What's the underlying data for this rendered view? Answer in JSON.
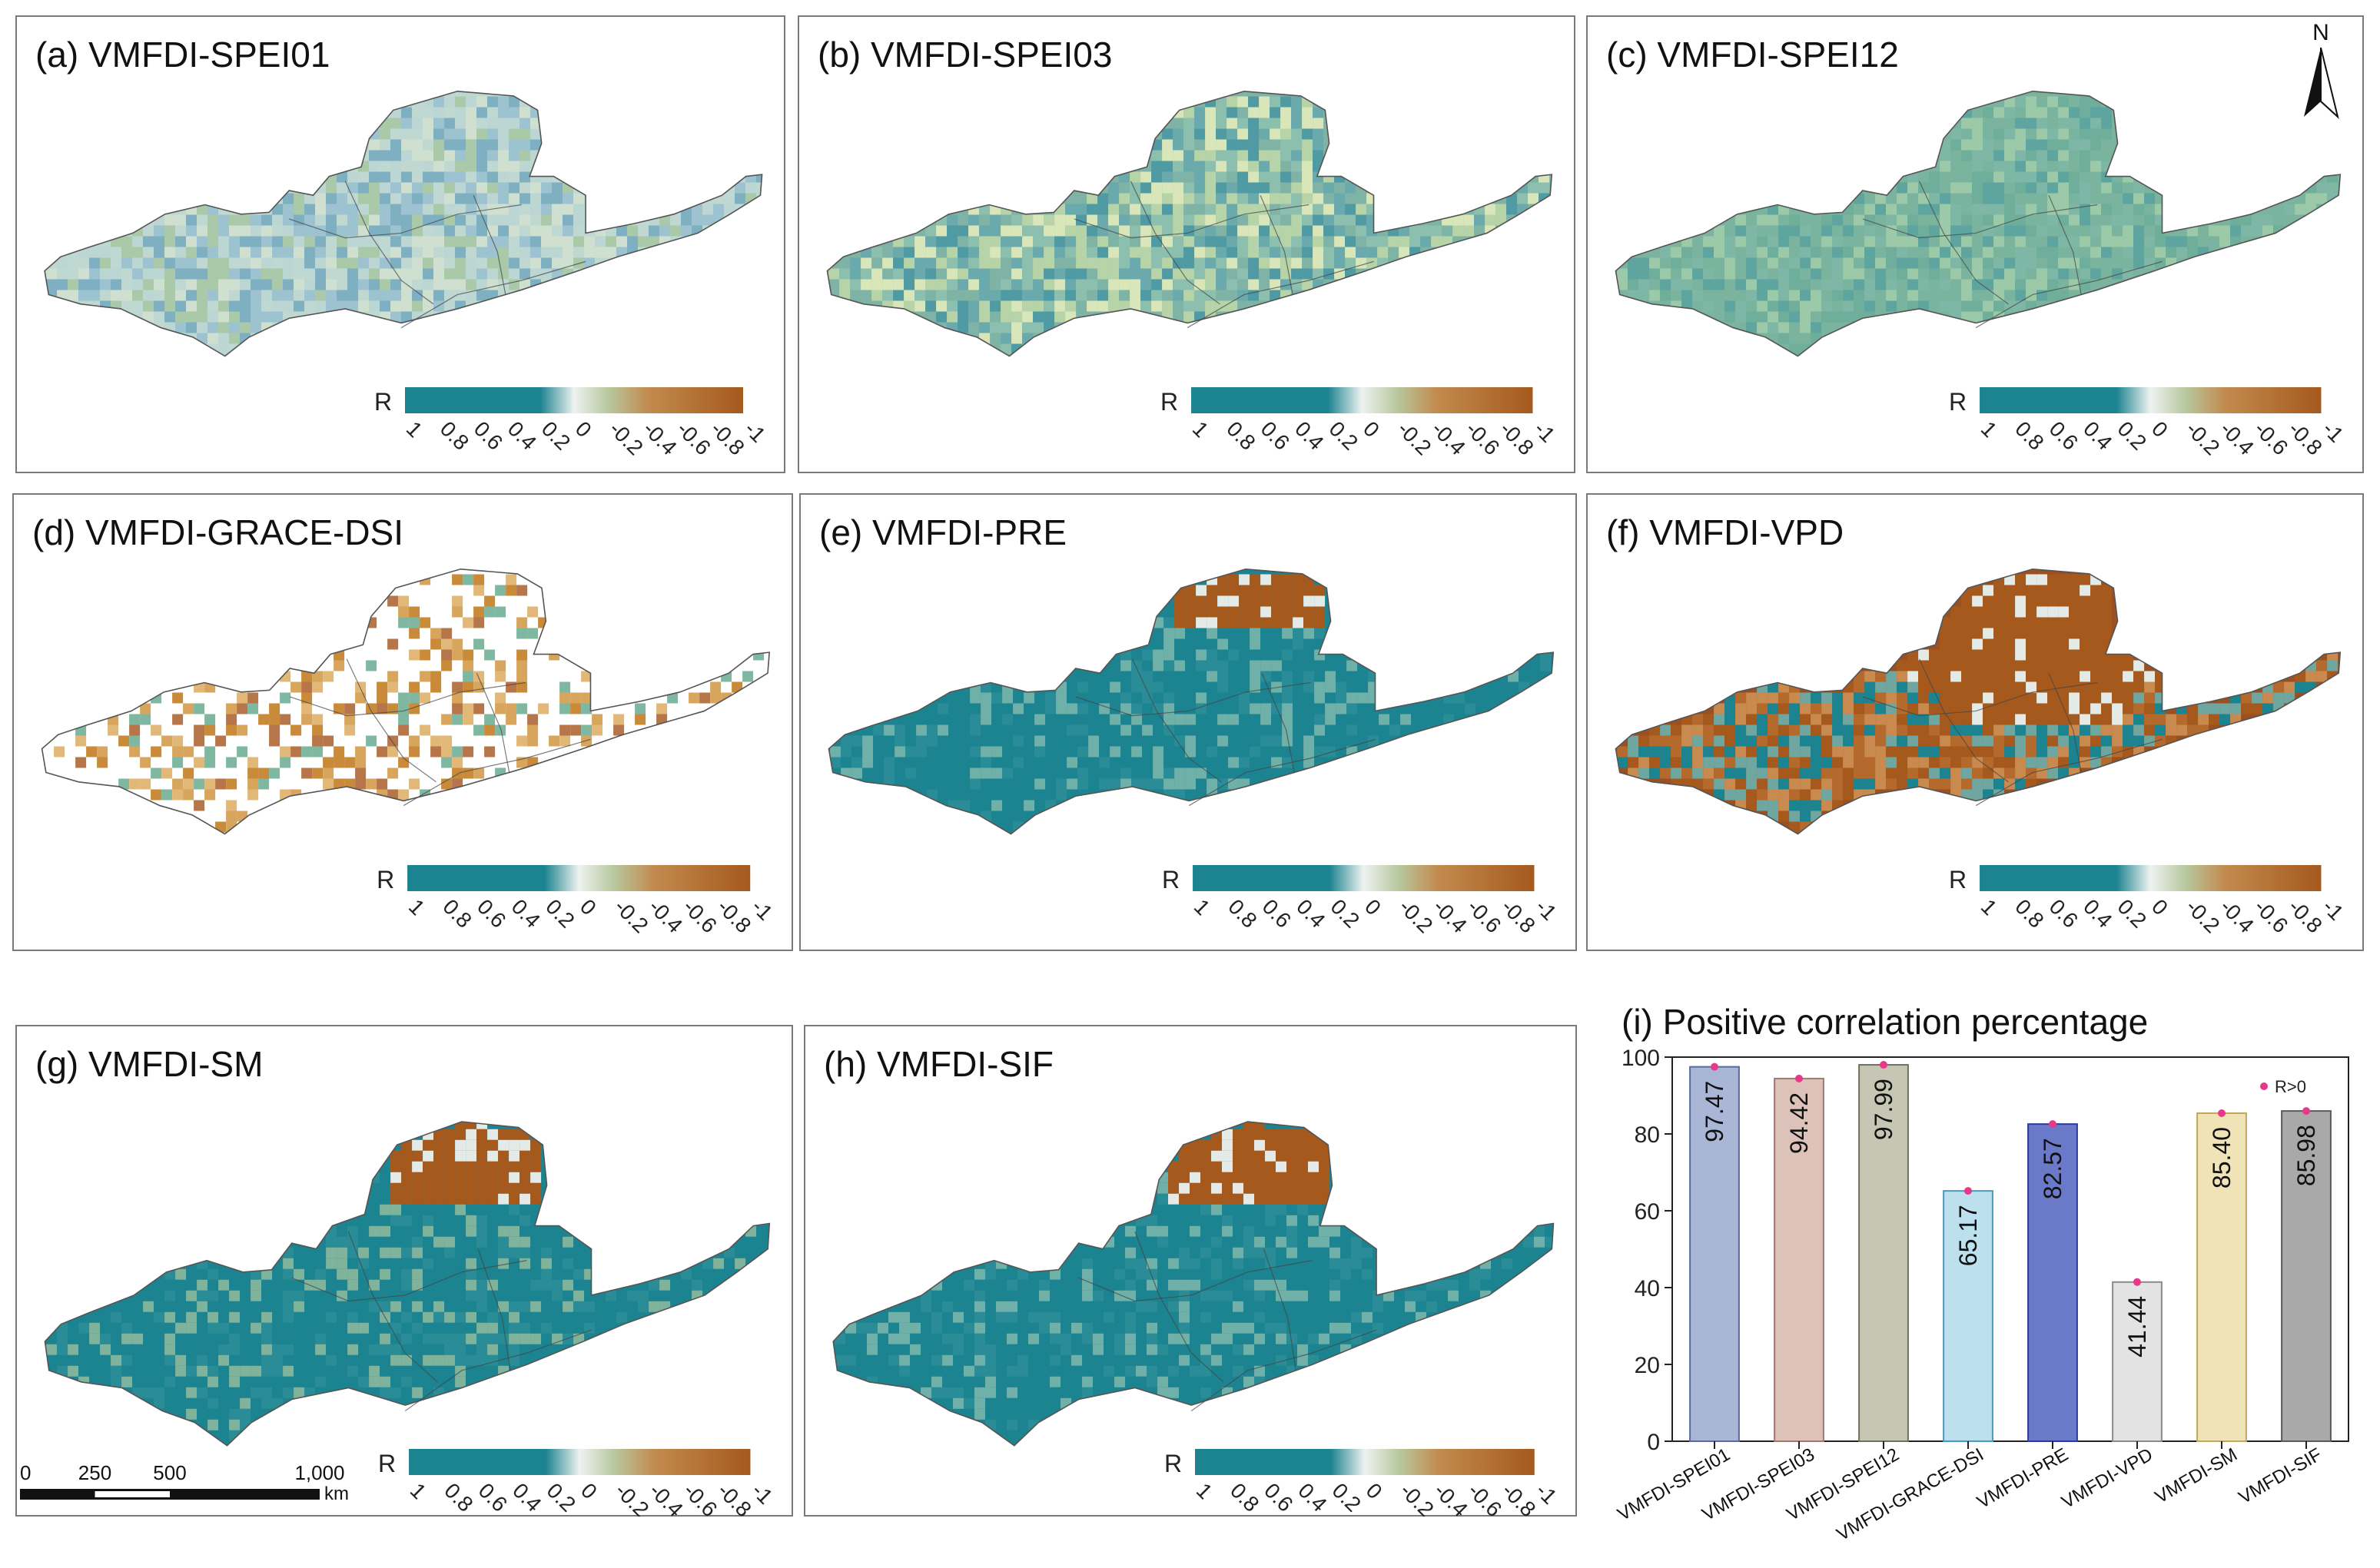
{
  "panels": [
    {
      "key": "a",
      "label": "(a) VMFDI-SPEI01"
    },
    {
      "key": "b",
      "label": "(b) VMFDI-SPEI03"
    },
    {
      "key": "c",
      "label": "(c) VMFDI-SPEI12"
    },
    {
      "key": "d",
      "label": "(d) VMFDI-GRACE-DSI"
    },
    {
      "key": "e",
      "label": "(e) VMFDI-PRE"
    },
    {
      "key": "f",
      "label": "(f) VMFDI-VPD"
    },
    {
      "key": "g",
      "label": "(g) VMFDI-SM"
    },
    {
      "key": "h",
      "label": "(h) VMFDI-SIF"
    }
  ],
  "legend": {
    "title": "R",
    "ticks": [
      "1",
      "0.8",
      "0.6",
      "0.4",
      "0.2",
      "0",
      "-0.2",
      "-0.4",
      "-0.6",
      "-0.8",
      "-1"
    ],
    "colors": {
      "positive": "#1c8390",
      "neutral": "#eef2f0",
      "negative": "#a5591d"
    }
  },
  "north_arrow": {
    "label": "N"
  },
  "scale_bar": {
    "labels": [
      "0",
      "250",
      "500",
      "1,000"
    ],
    "unit": "km"
  },
  "chart_data": {
    "type": "bar",
    "title": "(i) Positive correlation percentage",
    "categories": [
      "VMFDI-SPEI01",
      "VMFDI-SPEI03",
      "VMFDI-SPEI12",
      "VMFDI-GRACE-DSI",
      "VMFDI-PRE",
      "VMFDI-VPD",
      "VMFDI-SM",
      "VMFDI-SIF"
    ],
    "values": [
      97.47,
      94.42,
      97.99,
      65.17,
      82.57,
      41.44,
      85.4,
      85.98
    ],
    "value_labels": [
      "97.47",
      "94.42",
      "97.99",
      "65.17",
      "82.57",
      "41.44",
      "85.40",
      "85.98"
    ],
    "colors": [
      "#a9b6d6",
      "#dcc2b8",
      "#c6c6b5",
      "#bde0ef",
      "#6b79c9",
      "#e3e3e3",
      "#f1e3b8",
      "#a9a9a9"
    ],
    "edge_colors": [
      "#5a6aa0",
      "#a07a70",
      "#707060",
      "#4a9ac0",
      "#2a3aa0",
      "#8a8a8a",
      "#c0a860",
      "#5a5a5a"
    ],
    "ylim": [
      0,
      100
    ],
    "yticks": [
      "0",
      "20",
      "40",
      "60",
      "80",
      "100"
    ],
    "legend": [
      "R>0"
    ],
    "marker_color": "#e8388a"
  }
}
